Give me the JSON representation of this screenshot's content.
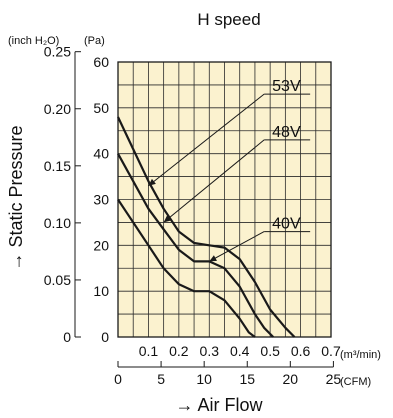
{
  "chart_data": {
    "type": "line",
    "title": "H speed",
    "ylabel": "→ Static Pressure",
    "xlabel": "→ Air Flow",
    "y_units": {
      "left": "(inch H₂O)",
      "right": "(Pa)"
    },
    "x_units": {
      "top": "(m³/min)",
      "bottom": "(CFM)"
    },
    "xlim": [
      0,
      0.7
    ],
    "ylim": [
      0,
      60
    ],
    "grid": true,
    "background": "#fbf2cf",
    "line_color": "#1a1a1a",
    "pa_ticks": [
      "0",
      "10",
      "20",
      "30",
      "40",
      "50",
      "60"
    ],
    "inch_ticks": [
      {
        "label": "0",
        "pa": 0
      },
      {
        "label": "0.05",
        "pa": 12.45
      },
      {
        "label": "0.10",
        "pa": 24.9
      },
      {
        "label": "0.15",
        "pa": 37.35
      },
      {
        "label": "0.20",
        "pa": 49.8
      },
      {
        "label": "0.25",
        "pa": 62.25
      }
    ],
    "m3_ticks": [
      "0.1",
      "0.2",
      "0.3",
      "0.4",
      "0.5",
      "0.6",
      "0.7"
    ],
    "cfm_ticks": [
      {
        "label": "0",
        "m3": 0
      },
      {
        "label": "5",
        "m3": 0.1416
      },
      {
        "label": "10",
        "m3": 0.2832
      },
      {
        "label": "15",
        "m3": 0.4248
      },
      {
        "label": "20",
        "m3": 0.5663
      },
      {
        "label": "25",
        "m3": 0.7079
      }
    ],
    "series": [
      {
        "name": "53V",
        "points": [
          [
            0,
            48
          ],
          [
            0.05,
            41
          ],
          [
            0.1,
            34
          ],
          [
            0.15,
            28
          ],
          [
            0.2,
            23
          ],
          [
            0.25,
            20.5
          ],
          [
            0.3,
            20
          ],
          [
            0.35,
            19.5
          ],
          [
            0.4,
            17
          ],
          [
            0.45,
            12
          ],
          [
            0.5,
            6
          ],
          [
            0.55,
            2
          ],
          [
            0.58,
            0
          ]
        ],
        "label_at": [
          0.5,
          53
        ],
        "pointer_to": [
          0.1,
          33
        ]
      },
      {
        "name": "48V",
        "points": [
          [
            0,
            40
          ],
          [
            0.05,
            34
          ],
          [
            0.1,
            28
          ],
          [
            0.15,
            23.5
          ],
          [
            0.2,
            19
          ],
          [
            0.25,
            16.5
          ],
          [
            0.3,
            16.5
          ],
          [
            0.35,
            15
          ],
          [
            0.4,
            11
          ],
          [
            0.45,
            5
          ],
          [
            0.48,
            2
          ],
          [
            0.51,
            0
          ]
        ],
        "label_at": [
          0.5,
          43
        ],
        "pointer_to": [
          0.15,
          25
        ]
      },
      {
        "name": "40V",
        "points": [
          [
            0,
            30
          ],
          [
            0.05,
            25
          ],
          [
            0.1,
            20
          ],
          [
            0.15,
            15
          ],
          [
            0.2,
            11.5
          ],
          [
            0.25,
            10
          ],
          [
            0.3,
            10
          ],
          [
            0.35,
            8
          ],
          [
            0.4,
            4
          ],
          [
            0.43,
            1
          ],
          [
            0.45,
            0
          ]
        ],
        "label_at": [
          0.5,
          23
        ],
        "pointer_to": [
          0.3,
          16.5
        ]
      }
    ]
  }
}
